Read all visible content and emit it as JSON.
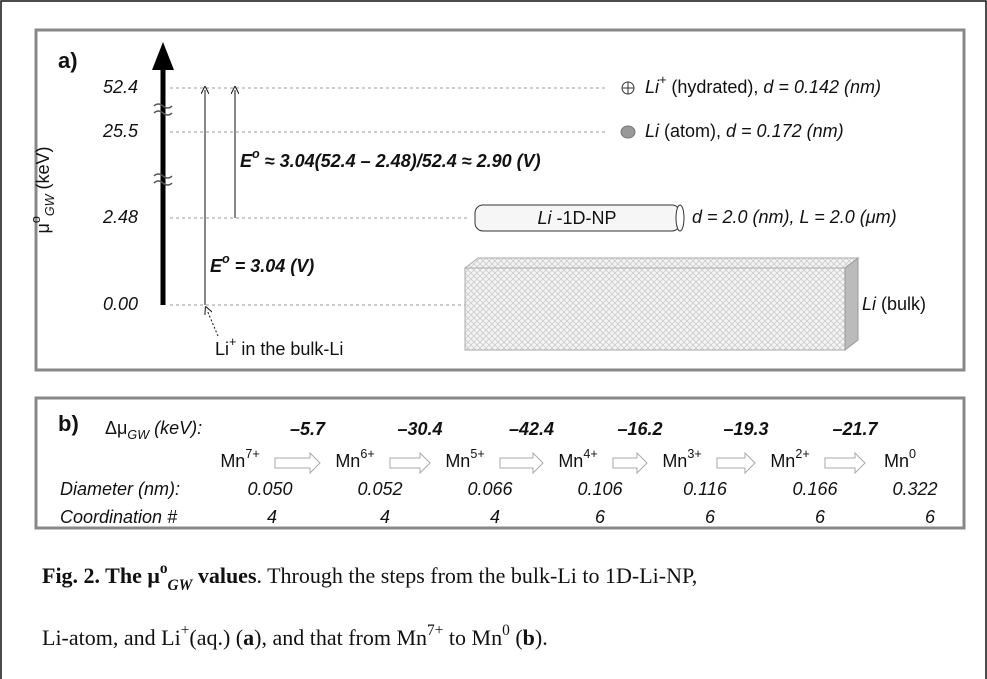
{
  "panel_a": {
    "label": "a)",
    "y_axis_label": [
      {
        "text": "μ"
      },
      {
        "text": "o",
        "style": "sup"
      },
      {
        "text": "GW",
        "style": "sub italic"
      },
      {
        "text": "  (keV)"
      }
    ],
    "ticks": [
      "52.4",
      "25.5",
      "2.48",
      "0.00"
    ],
    "equation_1": [
      {
        "text": "E",
        "style": "bold italic"
      },
      {
        "text": "o",
        "style": "sup bold italic"
      },
      {
        "text": " ≈ 3.04(52.4 – 2.48)/52.4 ≈ 2.90 (V)",
        "style": "bold italic"
      }
    ],
    "equation_2": [
      {
        "text": "E",
        "style": "bold italic"
      },
      {
        "text": "o",
        "style": "sup bold italic"
      },
      {
        "text": " = 3.04 (V)",
        "style": "bold italic"
      }
    ],
    "bulk_note": [
      {
        "text": "Li"
      },
      {
        "text": "+",
        "style": "sup"
      },
      {
        "text": " in the bulk-Li"
      }
    ],
    "hydrated": [
      {
        "text": "Li",
        "style": "italic"
      },
      {
        "text": "+",
        "style": "sup italic"
      },
      {
        "text": " (hydrated), "
      },
      {
        "text": "d = 0.142 (nm)",
        "style": "italic"
      }
    ],
    "atom": [
      {
        "text": "Li",
        "style": "italic"
      },
      {
        "text": " (atom),  "
      },
      {
        "text": "d = 0.172 (nm)",
        "style": "italic"
      }
    ],
    "np_label": [
      {
        "text": "Li",
        "style": "italic"
      },
      {
        "text": " -1D-NP"
      }
    ],
    "np_dims": [
      {
        "text": "d = 2.0 (nm), L = 2.0 (μm)",
        "style": "italic"
      }
    ],
    "bulk": [
      {
        "text": "Li",
        "style": "italic"
      },
      {
        "text": " (bulk)"
      }
    ]
  },
  "panel_b": {
    "label": "b)",
    "delta_label": [
      {
        "text": "Δμ"
      },
      {
        "text": "GW",
        "style": "sub italic"
      },
      {
        "text": " (keV):",
        "style": "italic"
      }
    ],
    "species": [
      {
        "base": "Mn",
        "charge": "7+"
      },
      {
        "base": "Mn",
        "charge": "6+"
      },
      {
        "base": "Mn",
        "charge": "5+"
      },
      {
        "base": "Mn",
        "charge": "4+"
      },
      {
        "base": "Mn",
        "charge": "3+"
      },
      {
        "base": "Mn",
        "charge": "2+"
      },
      {
        "base": "Mn",
        "charge": "0"
      }
    ],
    "steps": [
      "–5.7",
      "–30.4",
      "–42.4",
      "–16.2",
      "–19.3",
      "–21.7"
    ],
    "diameter_label": "Diameter (nm):",
    "diameters": [
      "0.050",
      "0.052",
      "0.066",
      "0.106",
      "0.116",
      "0.166",
      "0.322"
    ],
    "coordination_label": "Coordination #",
    "coordination": [
      "4",
      "4",
      "4",
      "6",
      "6",
      "6",
      "6"
    ]
  },
  "caption": {
    "line_1": [
      {
        "text": "Fig. 2. The μ",
        "style": "bold"
      },
      {
        "text": "o",
        "style": "sup bold"
      },
      {
        "text": "GW",
        "style": "sub bold italic"
      },
      {
        "text": " values",
        "style": "bold"
      },
      {
        "text": ". Through the steps from the bulk-Li to 1D-Li-NP,"
      }
    ],
    "line_2": [
      {
        "text": "Li-atom, and Li"
      },
      {
        "text": "+",
        "style": "sup"
      },
      {
        "text": "(aq.) ("
      },
      {
        "text": "a",
        "style": "bold"
      },
      {
        "text": "), and that from Mn"
      },
      {
        "text": "7+",
        "style": "sup"
      },
      {
        "text": " to Mn"
      },
      {
        "text": "0",
        "style": "sup"
      },
      {
        "text": " ("
      },
      {
        "text": "b",
        "style": "bold"
      },
      {
        "text": ")."
      }
    ]
  }
}
